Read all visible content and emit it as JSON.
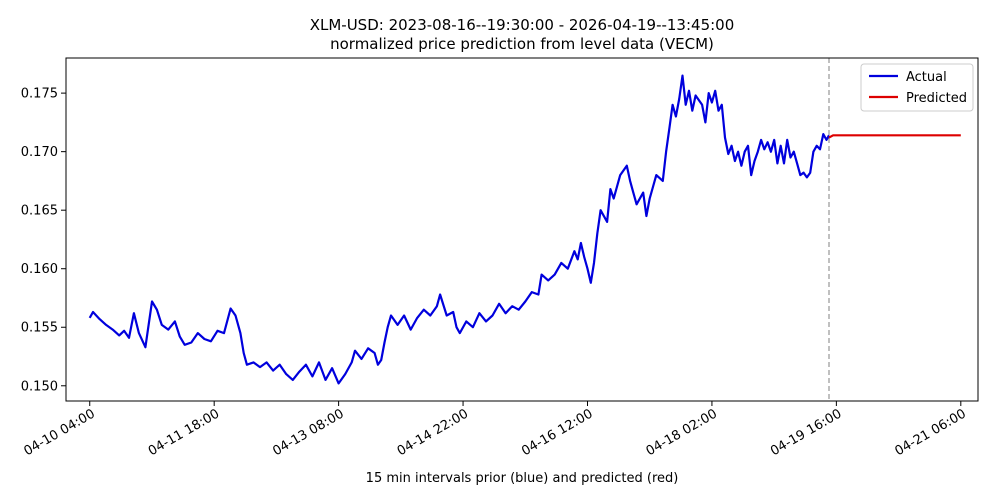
{
  "chart_data": {
    "type": "line",
    "title": "XLM-USD: 2023-08-16--19:30:00 - 2026-04-19--13:45:00",
    "subtitle": "normalized price prediction from level data (VECM)",
    "xlabel": "15 min intervals prior (blue) and predicted (red)",
    "ylabel": "",
    "x_range": [
      "2026-04-09 20:45",
      "2026-04-21 11:15"
    ],
    "ylim": [
      0.1487,
      0.178
    ],
    "x_ticks": [
      {
        "t": "2026-04-10 04:00",
        "label": "04-10 04:00"
      },
      {
        "t": "2026-04-11 18:00",
        "label": "04-11 18:00"
      },
      {
        "t": "2026-04-13 08:00",
        "label": "04-13 08:00"
      },
      {
        "t": "2026-04-14 22:00",
        "label": "04-14 22:00"
      },
      {
        "t": "2026-04-16 12:00",
        "label": "04-16 12:00"
      },
      {
        "t": "2026-04-18 02:00",
        "label": "04-18 02:00"
      },
      {
        "t": "2026-04-19 16:00",
        "label": "04-19 16:00"
      },
      {
        "t": "2026-04-21 06:00",
        "label": "04-21 06:00"
      }
    ],
    "y_ticks": [
      {
        "v": 0.15,
        "label": "0.150"
      },
      {
        "v": 0.155,
        "label": "0.155"
      },
      {
        "v": 0.16,
        "label": "0.160"
      },
      {
        "v": 0.165,
        "label": "0.165"
      },
      {
        "v": 0.17,
        "label": "0.170"
      },
      {
        "v": 0.175,
        "label": "0.175"
      }
    ],
    "grid": false,
    "legend_position": "top-right",
    "vline": {
      "t": "2026-04-19 13:45",
      "style": "dashed",
      "color": "#808080"
    },
    "series": [
      {
        "name": "Actual",
        "color": "#0000dd",
        "points": [
          [
            "2026-04-10 04:00",
            0.1558
          ],
          [
            "2026-04-10 05:00",
            0.1563
          ],
          [
            "2026-04-10 07:00",
            0.1557
          ],
          [
            "2026-04-10 09:00",
            0.1552
          ],
          [
            "2026-04-10 11:00",
            0.1548
          ],
          [
            "2026-04-10 13:00",
            0.1543
          ],
          [
            "2026-04-10 14:30",
            0.1547
          ],
          [
            "2026-04-10 16:00",
            0.1541
          ],
          [
            "2026-04-10 17:30",
            0.1562
          ],
          [
            "2026-04-10 19:00",
            0.1545
          ],
          [
            "2026-04-10 21:00",
            0.1533
          ],
          [
            "2026-04-10 23:00",
            0.1572
          ],
          [
            "2026-04-11 00:30",
            0.1565
          ],
          [
            "2026-04-11 02:00",
            0.1552
          ],
          [
            "2026-04-11 04:00",
            0.1548
          ],
          [
            "2026-04-11 06:00",
            0.1555
          ],
          [
            "2026-04-11 07:30",
            0.1542
          ],
          [
            "2026-04-11 09:00",
            0.1535
          ],
          [
            "2026-04-11 11:00",
            0.1537
          ],
          [
            "2026-04-11 13:00",
            0.1545
          ],
          [
            "2026-04-11 15:00",
            0.154
          ],
          [
            "2026-04-11 17:00",
            0.1538
          ],
          [
            "2026-04-11 19:00",
            0.1547
          ],
          [
            "2026-04-11 21:00",
            0.1545
          ],
          [
            "2026-04-11 23:00",
            0.1566
          ],
          [
            "2026-04-12 00:30",
            0.156
          ],
          [
            "2026-04-12 02:00",
            0.1545
          ],
          [
            "2026-04-12 03:00",
            0.1528
          ],
          [
            "2026-04-12 04:00",
            0.1518
          ],
          [
            "2026-04-12 06:00",
            0.152
          ],
          [
            "2026-04-12 08:00",
            0.1516
          ],
          [
            "2026-04-12 10:00",
            0.152
          ],
          [
            "2026-04-12 12:00",
            0.1513
          ],
          [
            "2026-04-12 14:00",
            0.1518
          ],
          [
            "2026-04-12 16:00",
            0.151
          ],
          [
            "2026-04-12 18:00",
            0.1505
          ],
          [
            "2026-04-12 20:00",
            0.1512
          ],
          [
            "2026-04-12 22:00",
            0.1518
          ],
          [
            "2026-04-13 00:00",
            0.1508
          ],
          [
            "2026-04-13 02:00",
            0.152
          ],
          [
            "2026-04-13 04:00",
            0.1505
          ],
          [
            "2026-04-13 06:00",
            0.1515
          ],
          [
            "2026-04-13 08:00",
            0.1502
          ],
          [
            "2026-04-13 10:00",
            0.151
          ],
          [
            "2026-04-13 12:00",
            0.152
          ],
          [
            "2026-04-13 13:00",
            0.153
          ],
          [
            "2026-04-13 15:00",
            0.1523
          ],
          [
            "2026-04-13 17:00",
            0.1532
          ],
          [
            "2026-04-13 19:00",
            0.1528
          ],
          [
            "2026-04-13 20:00",
            0.1518
          ],
          [
            "2026-04-13 21:00",
            0.1522
          ],
          [
            "2026-04-13 22:00",
            0.1537
          ],
          [
            "2026-04-13 23:00",
            0.155
          ],
          [
            "2026-04-14 00:00",
            0.156
          ],
          [
            "2026-04-14 02:00",
            0.1552
          ],
          [
            "2026-04-14 04:00",
            0.156
          ],
          [
            "2026-04-14 06:00",
            0.1548
          ],
          [
            "2026-04-14 08:00",
            0.1558
          ],
          [
            "2026-04-14 10:00",
            0.1565
          ],
          [
            "2026-04-14 12:00",
            0.156
          ],
          [
            "2026-04-14 14:00",
            0.1568
          ],
          [
            "2026-04-14 15:00",
            0.1578
          ],
          [
            "2026-04-14 17:00",
            0.156
          ],
          [
            "2026-04-14 19:00",
            0.1563
          ],
          [
            "2026-04-14 20:00",
            0.155
          ],
          [
            "2026-04-14 21:00",
            0.1545
          ],
          [
            "2026-04-14 23:00",
            0.1555
          ],
          [
            "2026-04-15 01:00",
            0.155
          ],
          [
            "2026-04-15 03:00",
            0.1562
          ],
          [
            "2026-04-15 05:00",
            0.1555
          ],
          [
            "2026-04-15 07:00",
            0.156
          ],
          [
            "2026-04-15 09:00",
            0.157
          ],
          [
            "2026-04-15 11:00",
            0.1562
          ],
          [
            "2026-04-15 13:00",
            0.1568
          ],
          [
            "2026-04-15 15:00",
            0.1565
          ],
          [
            "2026-04-15 17:00",
            0.1572
          ],
          [
            "2026-04-15 19:00",
            0.158
          ],
          [
            "2026-04-15 21:00",
            0.1578
          ],
          [
            "2026-04-15 22:00",
            0.1595
          ],
          [
            "2026-04-16 00:00",
            0.159
          ],
          [
            "2026-04-16 02:00",
            0.1595
          ],
          [
            "2026-04-16 04:00",
            0.1605
          ],
          [
            "2026-04-16 06:00",
            0.16
          ],
          [
            "2026-04-16 08:00",
            0.1615
          ],
          [
            "2026-04-16 09:00",
            0.1608
          ],
          [
            "2026-04-16 10:00",
            0.1622
          ],
          [
            "2026-04-16 11:00",
            0.161
          ],
          [
            "2026-04-16 12:00",
            0.16
          ],
          [
            "2026-04-16 13:00",
            0.1588
          ],
          [
            "2026-04-16 14:00",
            0.1605
          ],
          [
            "2026-04-16 15:00",
            0.163
          ],
          [
            "2026-04-16 16:00",
            0.165
          ],
          [
            "2026-04-16 18:00",
            0.164
          ],
          [
            "2026-04-16 19:00",
            0.1668
          ],
          [
            "2026-04-16 20:00",
            0.166
          ],
          [
            "2026-04-16 22:00",
            0.168
          ],
          [
            "2026-04-17 00:00",
            0.1688
          ],
          [
            "2026-04-17 01:00",
            0.1675
          ],
          [
            "2026-04-17 02:00",
            0.1665
          ],
          [
            "2026-04-17 03:00",
            0.1655
          ],
          [
            "2026-04-17 05:00",
            0.1665
          ],
          [
            "2026-04-17 06:00",
            0.1645
          ],
          [
            "2026-04-17 07:00",
            0.166
          ],
          [
            "2026-04-17 09:00",
            0.168
          ],
          [
            "2026-04-17 11:00",
            0.1675
          ],
          [
            "2026-04-17 12:00",
            0.17
          ],
          [
            "2026-04-17 13:00",
            0.172
          ],
          [
            "2026-04-17 14:00",
            0.174
          ],
          [
            "2026-04-17 15:00",
            0.173
          ],
          [
            "2026-04-17 16:00",
            0.1745
          ],
          [
            "2026-04-17 17:00",
            0.1765
          ],
          [
            "2026-04-17 18:00",
            0.174
          ],
          [
            "2026-04-17 19:00",
            0.1752
          ],
          [
            "2026-04-17 20:00",
            0.1735
          ],
          [
            "2026-04-17 21:00",
            0.1748
          ],
          [
            "2026-04-17 23:00",
            0.174
          ],
          [
            "2026-04-18 00:00",
            0.1725
          ],
          [
            "2026-04-18 01:00",
            0.175
          ],
          [
            "2026-04-18 02:00",
            0.1742
          ],
          [
            "2026-04-18 03:00",
            0.1752
          ],
          [
            "2026-04-18 04:00",
            0.1735
          ],
          [
            "2026-04-18 05:00",
            0.174
          ],
          [
            "2026-04-18 06:00",
            0.1712
          ],
          [
            "2026-04-18 07:00",
            0.1698
          ],
          [
            "2026-04-18 08:00",
            0.1705
          ],
          [
            "2026-04-18 09:00",
            0.1692
          ],
          [
            "2026-04-18 10:00",
            0.17
          ],
          [
            "2026-04-18 11:00",
            0.1688
          ],
          [
            "2026-04-18 12:00",
            0.17
          ],
          [
            "2026-04-18 13:00",
            0.1705
          ],
          [
            "2026-04-18 14:00",
            0.168
          ],
          [
            "2026-04-18 15:00",
            0.1692
          ],
          [
            "2026-04-18 16:00",
            0.17
          ],
          [
            "2026-04-18 17:00",
            0.171
          ],
          [
            "2026-04-18 18:00",
            0.1702
          ],
          [
            "2026-04-18 19:00",
            0.1708
          ],
          [
            "2026-04-18 20:00",
            0.17
          ],
          [
            "2026-04-18 21:00",
            0.171
          ],
          [
            "2026-04-18 22:00",
            0.169
          ],
          [
            "2026-04-18 23:00",
            0.1705
          ],
          [
            "2026-04-19 00:00",
            0.169
          ],
          [
            "2026-04-19 01:00",
            0.171
          ],
          [
            "2026-04-19 02:00",
            0.1695
          ],
          [
            "2026-04-19 03:00",
            0.17
          ],
          [
            "2026-04-19 04:00",
            0.169
          ],
          [
            "2026-04-19 05:00",
            0.168
          ],
          [
            "2026-04-19 06:00",
            0.1682
          ],
          [
            "2026-04-19 07:00",
            0.1678
          ],
          [
            "2026-04-19 08:00",
            0.1682
          ],
          [
            "2026-04-19 09:00",
            0.17
          ],
          [
            "2026-04-19 10:00",
            0.1705
          ],
          [
            "2026-04-19 11:00",
            0.1702
          ],
          [
            "2026-04-19 12:00",
            0.1715
          ],
          [
            "2026-04-19 13:00",
            0.171
          ],
          [
            "2026-04-19 13:45",
            0.1714
          ]
        ]
      },
      {
        "name": "Predicted",
        "color": "#dd0000",
        "points": [
          [
            "2026-04-19 13:45",
            0.1712
          ],
          [
            "2026-04-19 15:00",
            0.1714
          ],
          [
            "2026-04-19 17:00",
            0.1714
          ],
          [
            "2026-04-20 00:00",
            0.1714
          ],
          [
            "2026-04-20 12:00",
            0.1714
          ],
          [
            "2026-04-21 00:00",
            0.1714
          ],
          [
            "2026-04-21 06:00",
            0.1714
          ]
        ]
      }
    ]
  }
}
